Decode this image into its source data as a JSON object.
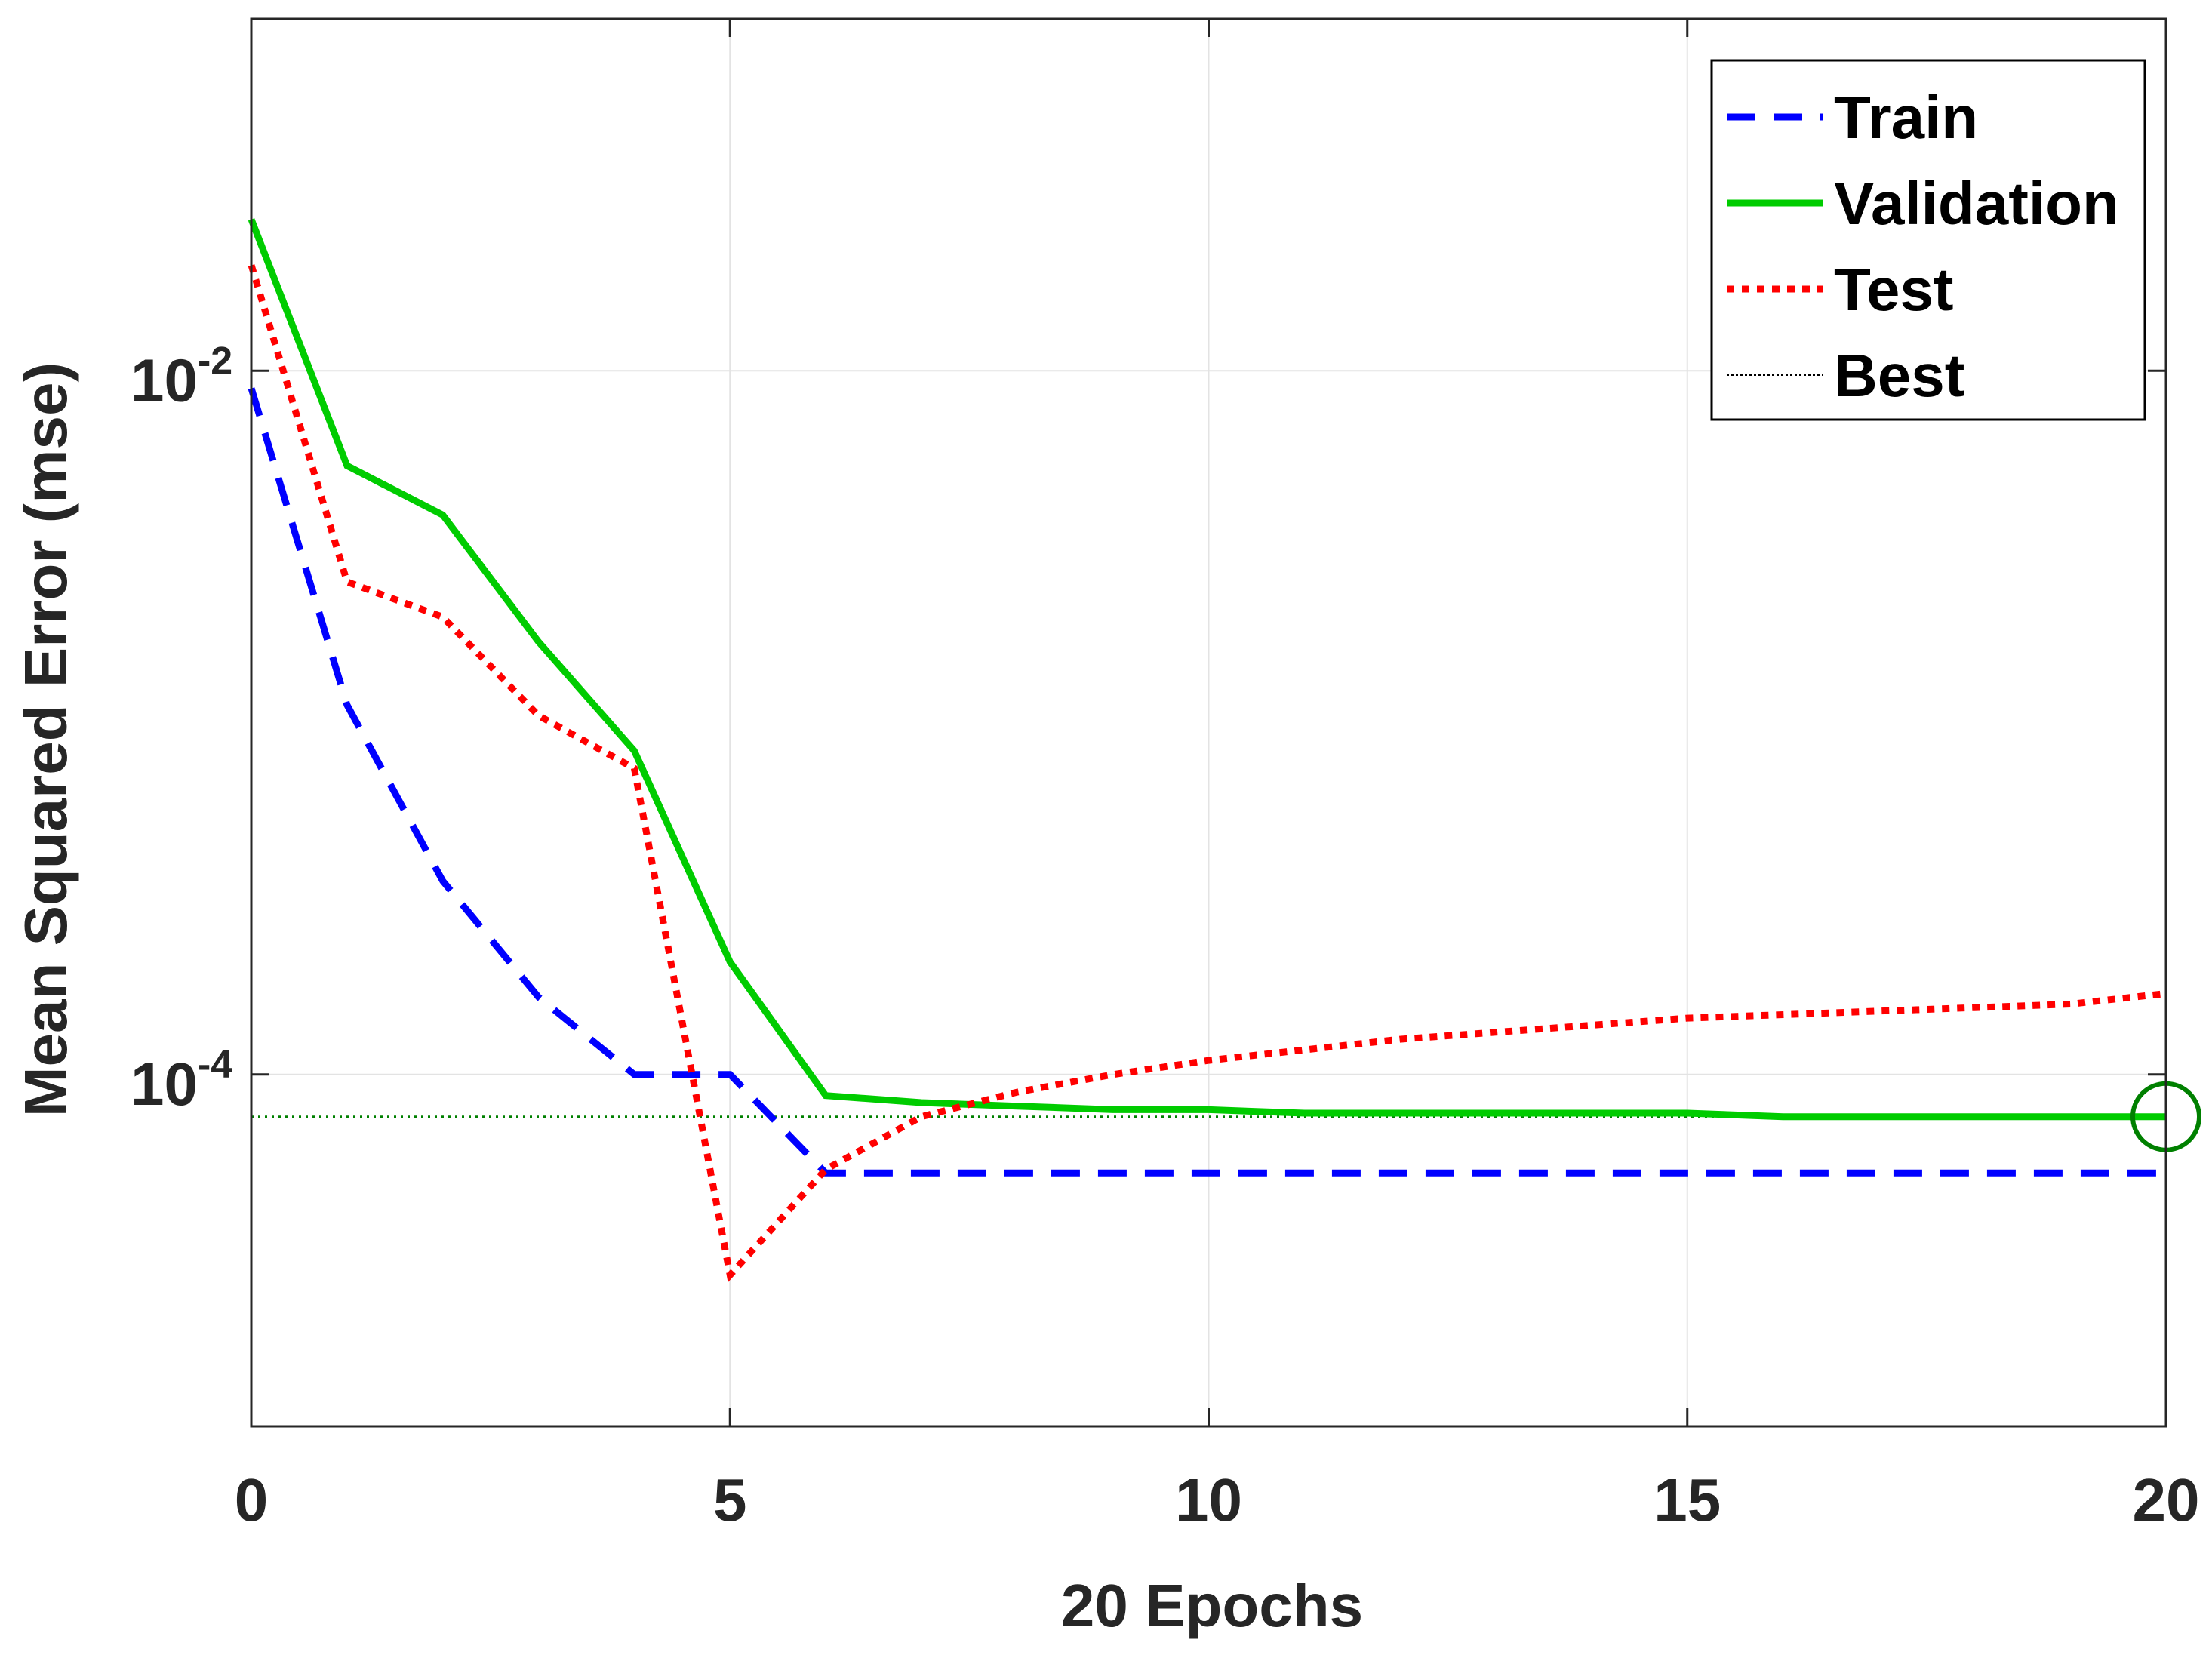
{
  "chart_data": {
    "type": "line",
    "title": "",
    "xlabel": "20 Epochs",
    "ylabel": "Mean Squared Error  (mse)",
    "xlim": [
      0,
      20
    ],
    "ylim_log10": [
      -5,
      -1
    ],
    "yscale": "log",
    "grid": true,
    "x_ticks": [
      {
        "value": 0,
        "label": "0"
      },
      {
        "value": 5,
        "label": "5"
      },
      {
        "value": 10,
        "label": "10"
      },
      {
        "value": 15,
        "label": "15"
      },
      {
        "value": 20,
        "label": "20"
      }
    ],
    "y_ticks": [
      {
        "log10": -2,
        "base": "10",
        "exp": "-2"
      },
      {
        "log10": -4,
        "base": "10",
        "exp": "-4"
      }
    ],
    "x": [
      0,
      1,
      2,
      3,
      4,
      5,
      6,
      7,
      8,
      9,
      10,
      11,
      12,
      13,
      14,
      15,
      16,
      17,
      18,
      19,
      20
    ],
    "series": [
      {
        "name": "Train",
        "color": "#0000ff",
        "style": "dashed",
        "log10_values": [
          -2.05,
          -2.95,
          -3.45,
          -3.78,
          -4.0,
          -4.0,
          -4.28,
          -4.28,
          -4.28,
          -4.28,
          -4.28,
          -4.28,
          -4.28,
          -4.28,
          -4.28,
          -4.28,
          -4.28,
          -4.28,
          -4.28,
          -4.28,
          -4.28
        ]
      },
      {
        "name": "Validation",
        "color": "#00cc00",
        "style": "solid",
        "log10_values": [
          -1.57,
          -2.27,
          -2.41,
          -2.77,
          -3.08,
          -3.68,
          -4.06,
          -4.08,
          -4.09,
          -4.1,
          -4.1,
          -4.11,
          -4.11,
          -4.11,
          -4.11,
          -4.11,
          -4.12,
          -4.12,
          -4.12,
          -4.12,
          -4.12
        ]
      },
      {
        "name": "Test",
        "color": "#ff0000",
        "style": "dotted",
        "log10_values": [
          -1.7,
          -2.6,
          -2.7,
          -2.98,
          -3.13,
          -4.57,
          -4.27,
          -4.12,
          -4.05,
          -4.0,
          -3.96,
          -3.93,
          -3.9,
          -3.88,
          -3.86,
          -3.84,
          -3.83,
          -3.82,
          -3.81,
          -3.8,
          -3.77
        ]
      }
    ],
    "best": {
      "name": "Best",
      "epoch": 20,
      "log10_value": -4.12,
      "color": "#008000"
    },
    "legend": {
      "position": "top-right",
      "entries": [
        "Train",
        "Validation",
        "Test",
        "Best"
      ]
    }
  }
}
